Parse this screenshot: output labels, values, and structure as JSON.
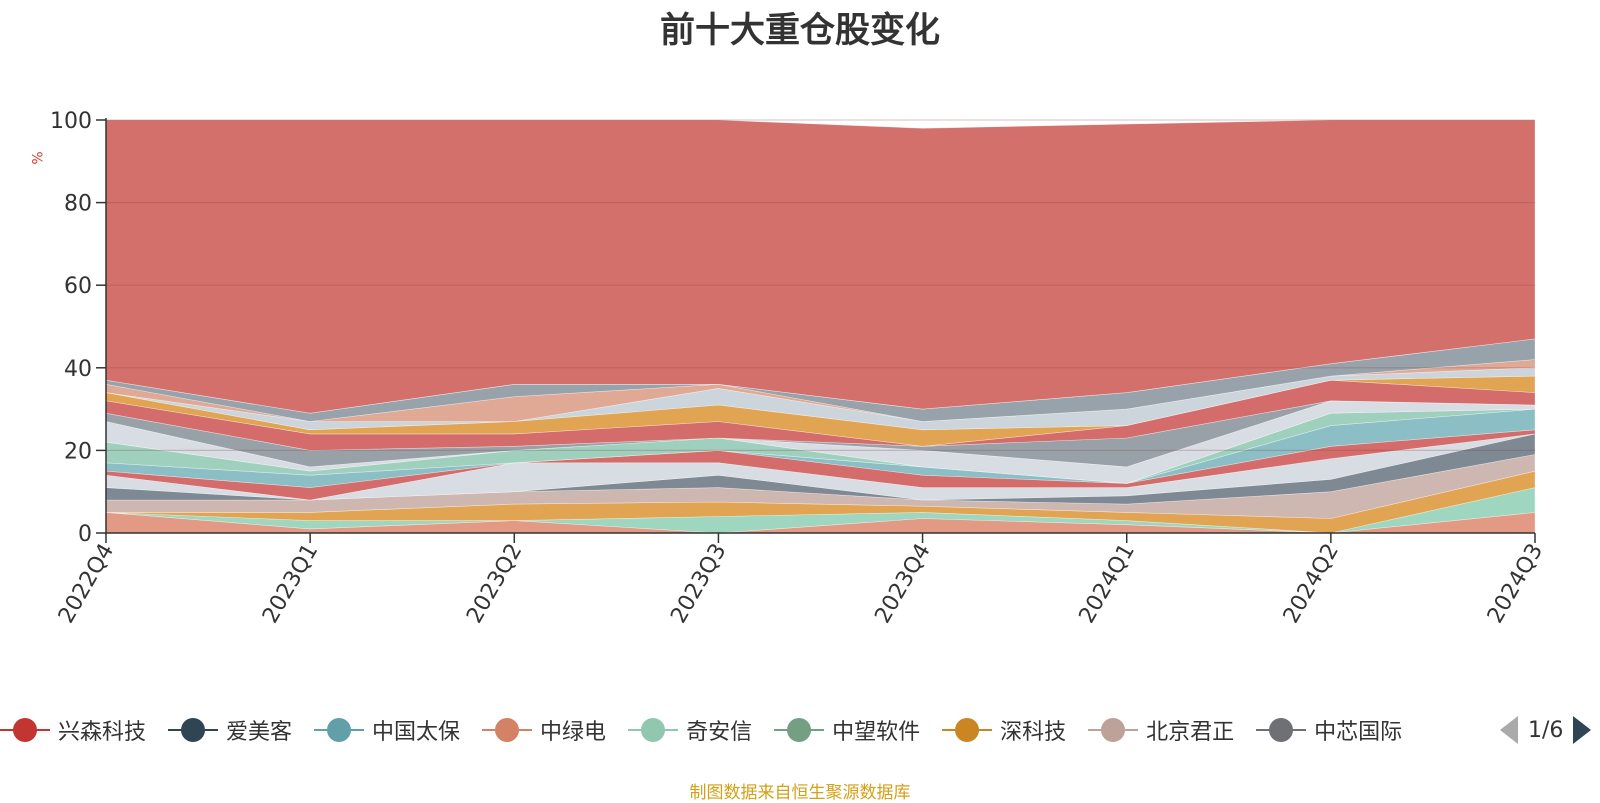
{
  "chart_data": {
    "type": "area",
    "title": "前十大重仓股变化",
    "ylabel": "%",
    "ylim": [
      0,
      100
    ],
    "y_ticks": [
      0,
      20,
      40,
      60,
      80,
      100
    ],
    "categories": [
      "2022Q4",
      "2023Q1",
      "2023Q2",
      "2023Q3",
      "2023Q4",
      "2024Q1",
      "2024Q2",
      "2024Q3"
    ],
    "grid": true,
    "legend_position": "bottom",
    "legend_page": "1/6",
    "source": "制图数据来自恒生聚源数据库",
    "bands": [
      {
        "lower": [
          0,
          0,
          0,
          0,
          0,
          0,
          0,
          0
        ],
        "upper": [
          5,
          1,
          3,
          0,
          3.5,
          2,
          0,
          5
        ],
        "color": "#e39a85"
      },
      {
        "lower": [
          5,
          1,
          3,
          0,
          3.5,
          2,
          0,
          5
        ],
        "upper": [
          5,
          3,
          3,
          4,
          5,
          3,
          0,
          11
        ],
        "color": "#9fd6c0"
      },
      {
        "lower": [
          5,
          3,
          3,
          4,
          5,
          3,
          0,
          11
        ],
        "upper": [
          5,
          5,
          7,
          7.5,
          6.5,
          5,
          3.5,
          15
        ],
        "color": "#e0a452"
      },
      {
        "lower": [
          5,
          5,
          7,
          7.5,
          6.5,
          5,
          3.5,
          15
        ],
        "upper": [
          8,
          8,
          10,
          11,
          8,
          7,
          10,
          19
        ],
        "color": "#cfb7b1"
      },
      {
        "lower": [
          8,
          8,
          10,
          11,
          8,
          7,
          10,
          19
        ],
        "upper": [
          11,
          8,
          10,
          14,
          8,
          9,
          13,
          24
        ],
        "color": "#7e8994"
      },
      {
        "lower": [
          11,
          8,
          10,
          14,
          8,
          9,
          13,
          24
        ],
        "upper": [
          14,
          8,
          17,
          17,
          11,
          11,
          18,
          24
        ],
        "color": "#d7dde2"
      },
      {
        "lower": [
          14,
          8,
          17,
          17,
          11,
          11,
          18,
          24
        ],
        "upper": [
          15,
          11,
          17,
          20,
          14,
          12,
          21,
          25
        ],
        "color": "#d36c6a"
      },
      {
        "lower": [
          15,
          11,
          17,
          20,
          14,
          12,
          21,
          25
        ],
        "upper": [
          17,
          14,
          17,
          20,
          16,
          12,
          26,
          30
        ],
        "color": "#8bbec5"
      },
      {
        "lower": [
          17,
          14,
          17,
          20,
          16,
          12,
          26,
          30
        ],
        "upper": [
          22,
          15,
          20,
          23,
          16,
          12,
          29,
          30
        ],
        "color": "#9fd0be"
      },
      {
        "lower": [
          22,
          15,
          20,
          23,
          16,
          12,
          29,
          30
        ],
        "upper": [
          27,
          16,
          20,
          23,
          20,
          16,
          32,
          31
        ],
        "color": "#d7dde2"
      },
      {
        "lower": [
          27,
          16,
          20,
          23,
          20,
          16,
          32,
          31
        ],
        "upper": [
          29,
          20,
          21,
          23,
          21,
          23,
          32,
          31
        ],
        "color": "#99a1a8"
      },
      {
        "lower": [
          29,
          20,
          21,
          23,
          21,
          23,
          32,
          31
        ],
        "upper": [
          32,
          24,
          24,
          27,
          21,
          26,
          37,
          34
        ],
        "color": "#d36c6a"
      },
      {
        "lower": [
          32,
          24,
          24,
          27,
          21,
          26,
          37,
          34
        ],
        "upper": [
          34,
          25,
          27,
          31,
          25,
          26,
          37,
          38
        ],
        "color": "#e0a452"
      },
      {
        "lower": [
          34,
          25,
          27,
          31,
          25,
          26,
          37,
          38
        ],
        "upper": [
          34,
          27,
          27,
          35,
          27,
          30,
          38,
          40
        ],
        "color": "#ccd5db"
      },
      {
        "lower": [
          34,
          27,
          27,
          35,
          27,
          30,
          38,
          40
        ],
        "upper": [
          36,
          27,
          33,
          36,
          27,
          30,
          38,
          42
        ],
        "color": "#e0a995"
      },
      {
        "lower": [
          36,
          27,
          33,
          36,
          27,
          30,
          38,
          42
        ],
        "upper": [
          37,
          29,
          36,
          36,
          30,
          34,
          41,
          47
        ],
        "color": "#98a2ab"
      },
      {
        "lower": [
          37,
          29,
          36,
          36,
          30,
          34,
          41,
          47
        ],
        "upper": [
          37,
          29,
          36,
          36,
          30,
          34,
          41,
          47
        ],
        "color": "#d5dadf"
      },
      {
        "lower": [
          37,
          29,
          36,
          36,
          30,
          34,
          41,
          47
        ],
        "upper": [
          100,
          100,
          100,
          100,
          98,
          99,
          100,
          100
        ],
        "color": "#d4706c"
      }
    ],
    "series": [
      {
        "name": "兴森科技",
        "color": "#c23531"
      },
      {
        "name": "爱美客",
        "color": "#2f4554"
      },
      {
        "name": "中国太保",
        "color": "#61a0a8"
      },
      {
        "name": "中绿电",
        "color": "#d48265"
      },
      {
        "name": "奇安信",
        "color": "#91c7ae"
      },
      {
        "name": "中望软件",
        "color": "#749f83"
      },
      {
        "name": "深科技",
        "color": "#ca8622"
      },
      {
        "name": "北京君正",
        "color": "#bda29a"
      },
      {
        "name": "中芯国际",
        "color": "#6e7074"
      }
    ]
  }
}
